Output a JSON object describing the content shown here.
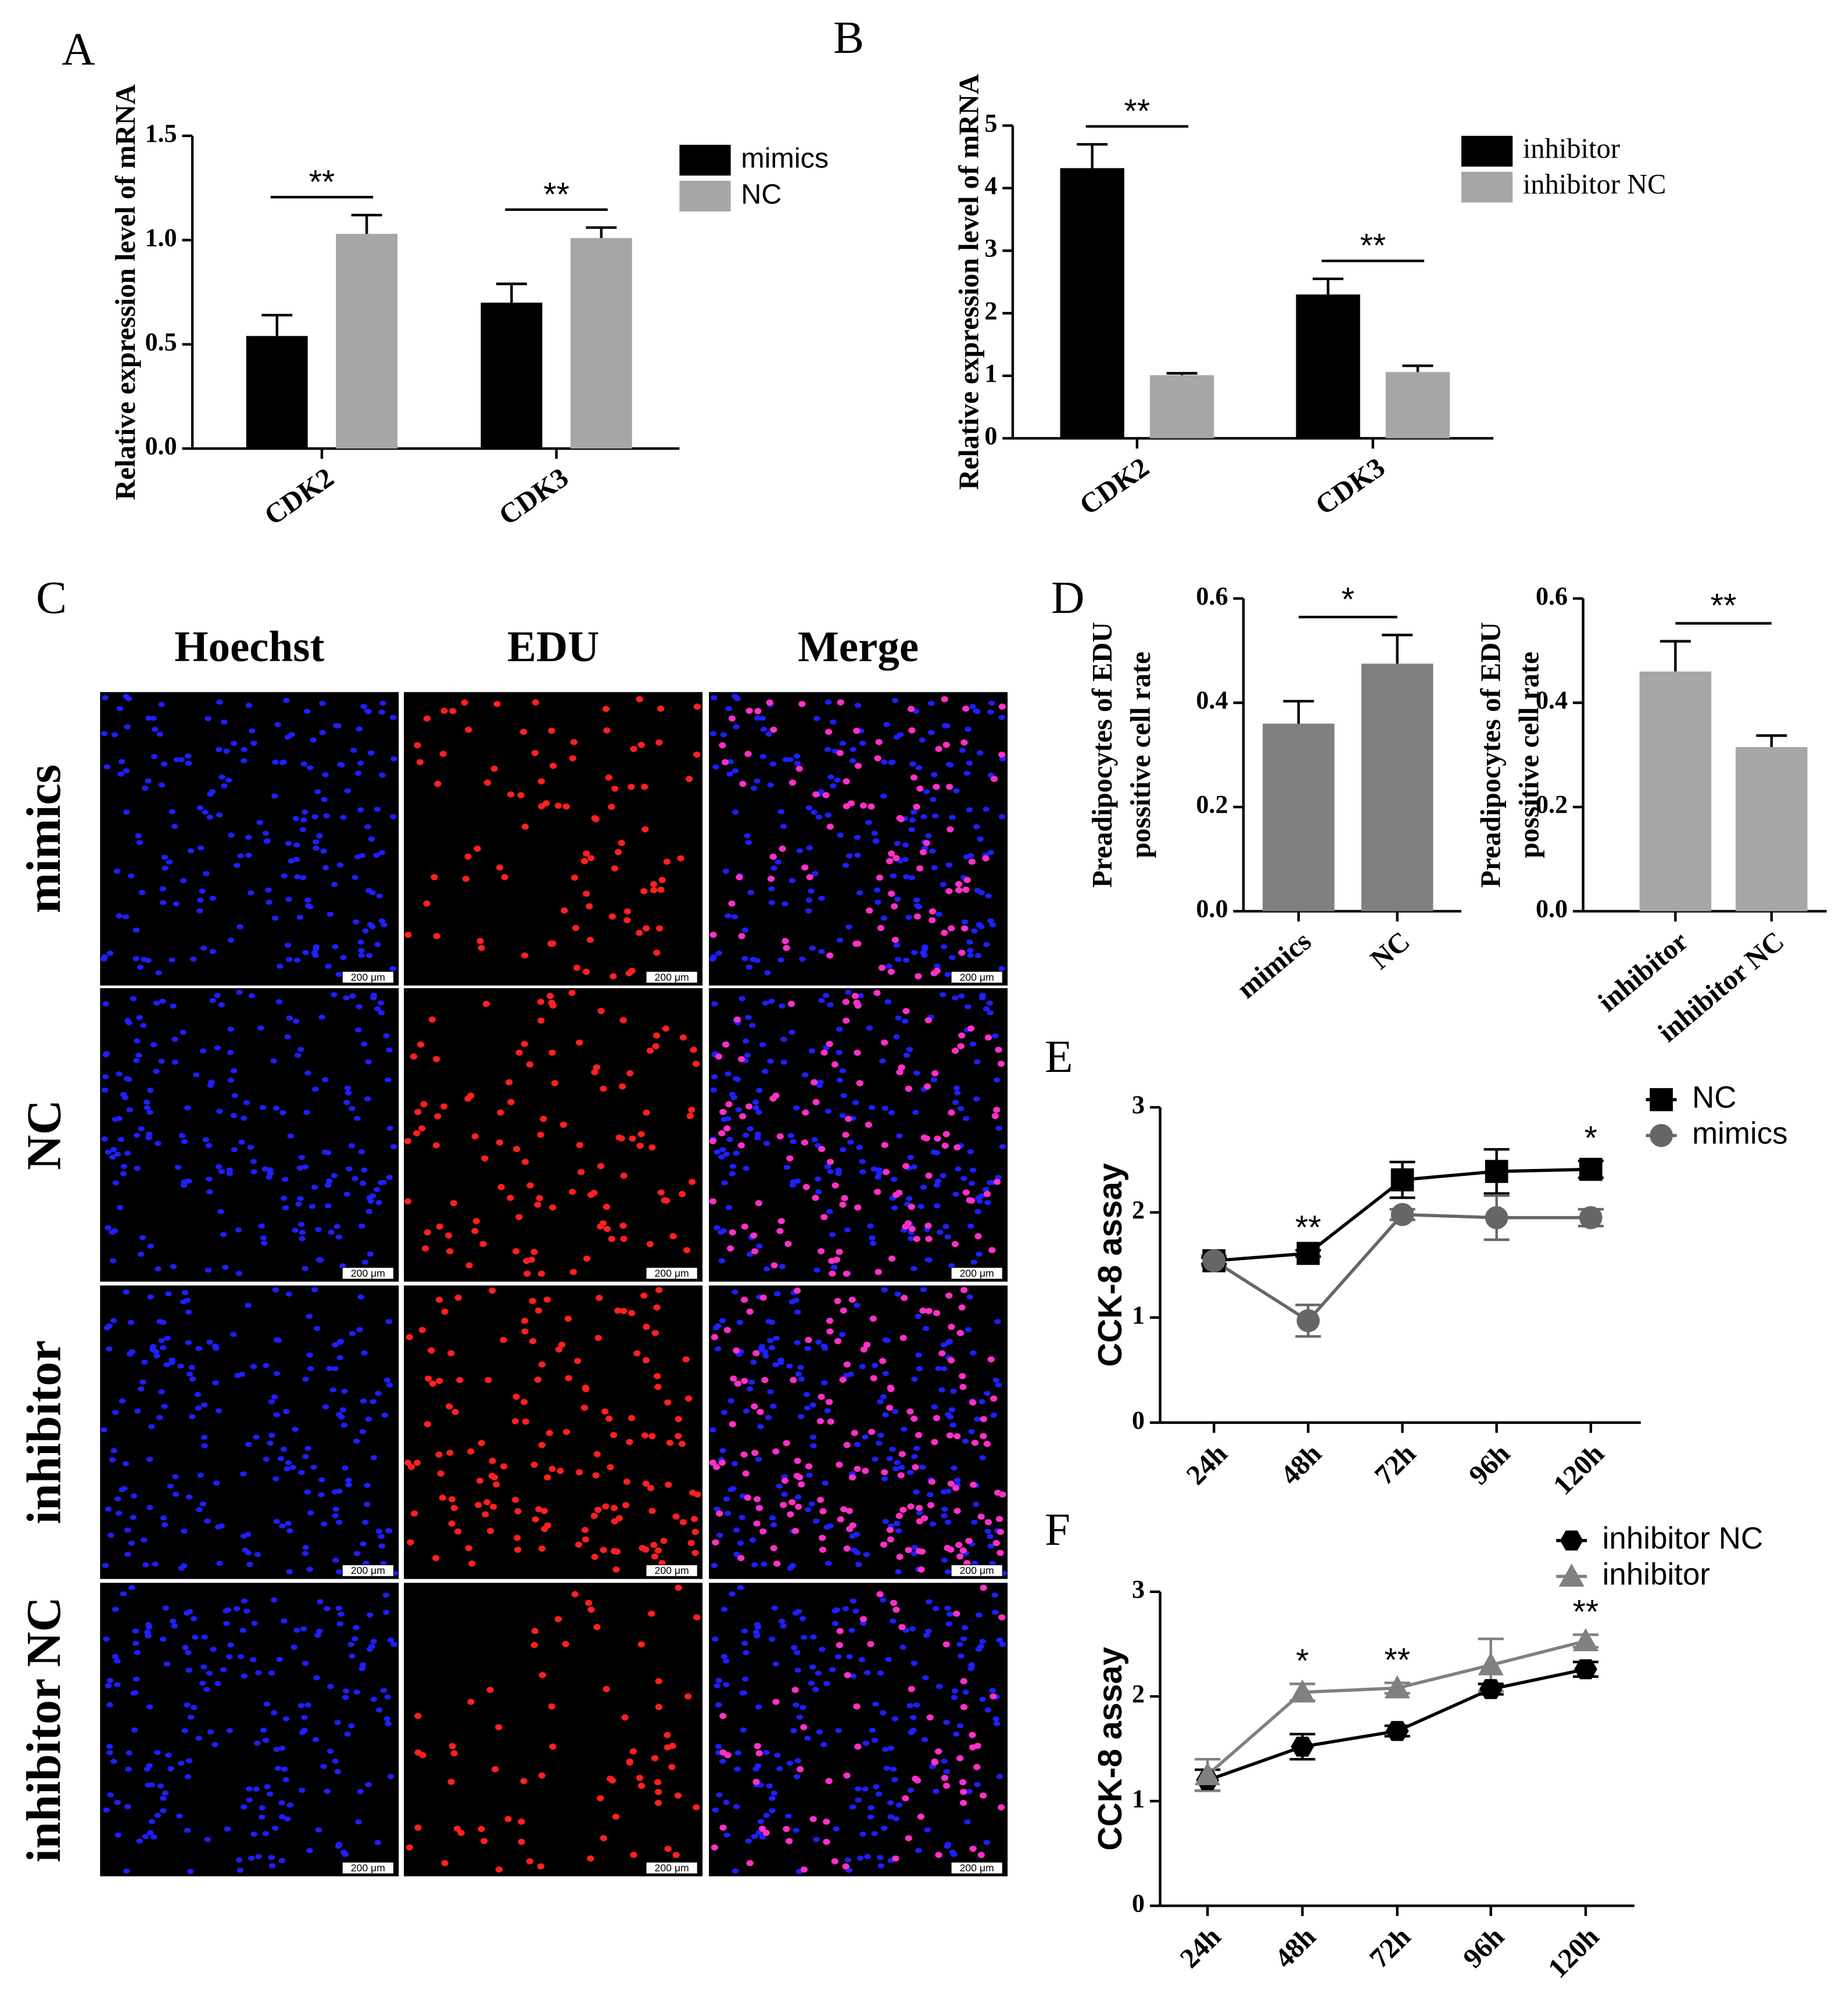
{
  "chart_data": [
    {
      "type": "bar",
      "panel": "A",
      "ylabel": "Relative expression level of mRNA",
      "categories": [
        "CDK2",
        "CDK3"
      ],
      "series": [
        {
          "name": "mimics",
          "color": "#000000",
          "values": [
            0.54,
            0.7
          ],
          "errors": [
            0.1,
            0.09
          ]
        },
        {
          "name": "NC",
          "color": "#a6a6a6",
          "values": [
            1.03,
            1.01
          ],
          "errors": [
            0.09,
            0.05
          ]
        }
      ],
      "significance": [
        "**",
        "**"
      ],
      "ylim": [
        0,
        1.5
      ],
      "yticks": [
        {
          "value": 0,
          "label": "0.0"
        },
        0.5,
        {
          "value": 1,
          "label": "1.0"
        },
        1.5
      ]
    },
    {
      "type": "bar",
      "panel": "B",
      "ylabel": "Relative expression level of mRNA",
      "categories": [
        "CDK2",
        "CDK3"
      ],
      "series": [
        {
          "name": "inhibitor",
          "color": "#000000",
          "values": [
            4.32,
            2.3
          ],
          "errors": [
            0.38,
            0.25
          ]
        },
        {
          "name": "inhibitor NC",
          "color": "#a6a6a6",
          "values": [
            1.01,
            1.06
          ],
          "errors": [
            0.03,
            0.1
          ]
        }
      ],
      "significance": [
        "**",
        "**"
      ],
      "ylim": [
        0,
        5
      ],
      "yticks": [
        0,
        1,
        2,
        3,
        4,
        5
      ]
    },
    {
      "type": "bar",
      "panel": "D",
      "ylabel": [
        "Preadipocytes of EDU",
        "possitive cell rate"
      ],
      "categories": [
        "mimics",
        "NC"
      ],
      "series": [
        {
          "color": "#808080",
          "values": [
            0.36,
            0.475
          ],
          "errors": [
            0.043,
            0.055
          ]
        }
      ],
      "significance": "*",
      "ylim": [
        0,
        0.6
      ],
      "yticks": [
        {
          "value": 0,
          "label": "0.0"
        },
        {
          "value": 0.2,
          "label": "0.2"
        },
        {
          "value": 0.4,
          "label": "0.4"
        },
        {
          "value": 0.6,
          "label": "0.6"
        }
      ]
    },
    {
      "type": "bar",
      "ylabel": [
        "Preadipocytes of EDU",
        "possitive cell rate"
      ],
      "categories": [
        "inhibitor",
        "inhibitor NC"
      ],
      "series": [
        {
          "color": "#a6a6a6",
          "values": [
            0.46,
            0.315
          ],
          "errors": [
            0.058,
            0.022
          ]
        }
      ],
      "significance": "**",
      "ylim": [
        0,
        0.6
      ],
      "yticks": [
        {
          "value": 0,
          "label": "0.0"
        },
        {
          "value": 0.2,
          "label": "0.2"
        },
        {
          "value": 0.4,
          "label": "0.4"
        },
        {
          "value": 0.6,
          "label": "0.6"
        }
      ]
    },
    {
      "type": "line",
      "panel": "E",
      "ylabel": "CCK-8 assay",
      "categories": [
        "24h",
        "48h",
        "72h",
        "96h",
        "120h"
      ],
      "series": [
        {
          "name": "NC",
          "color": "#000000",
          "marker": "square",
          "values": [
            1.54,
            1.61,
            2.31,
            2.39,
            2.41
          ],
          "errors": [
            0.03,
            0.03,
            0.17,
            0.21,
            0.08
          ]
        },
        {
          "name": "mimics",
          "color": "#666666",
          "marker": "circle",
          "values": [
            1.54,
            0.97,
            1.98,
            1.95,
            1.95
          ],
          "errors": [
            0.05,
            0.15,
            0.05,
            0.21,
            0.08
          ]
        }
      ],
      "significance": [
        null,
        "**",
        null,
        null,
        "*"
      ],
      "ylim": [
        0,
        3
      ],
      "yticks": [
        0,
        1,
        2,
        3
      ]
    },
    {
      "type": "line",
      "panel": "F",
      "ylabel": "CCK-8 assay",
      "categories": [
        "24h",
        "48h",
        "72h",
        "96h",
        "120h"
      ],
      "series": [
        {
          "name": "inhibitor NC",
          "color": "#000000",
          "marker": "hexagon",
          "values": [
            1.2,
            1.52,
            1.67,
            2.07,
            2.26
          ],
          "errors": [
            0.1,
            0.12,
            0.05,
            0.05,
            0.07
          ]
        },
        {
          "name": "inhibitor",
          "color": "#808080",
          "marker": "triangle",
          "values": [
            1.25,
            2.04,
            2.08,
            2.3,
            2.53
          ],
          "errors": [
            0.15,
            0.08,
            0.05,
            0.25,
            0.06
          ]
        }
      ],
      "significance": [
        null,
        "*",
        "**",
        null,
        "**"
      ],
      "ylim": [
        0,
        3
      ],
      "yticks": [
        0,
        1,
        2,
        3
      ]
    }
  ],
  "panel_c": {
    "panel": "C",
    "columns": [
      "Hoechst",
      "EDU",
      "Merge"
    ],
    "rows": [
      "mimics",
      "NC",
      "inhibitor",
      "inhibitor NC"
    ],
    "scale_bar": "200 μm"
  }
}
